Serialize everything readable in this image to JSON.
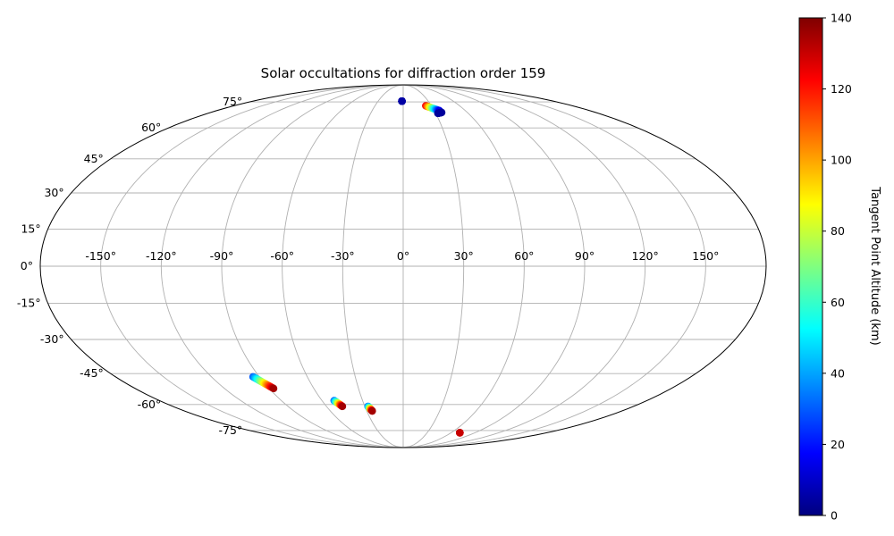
{
  "chart_data": {
    "type": "scatter",
    "projection": "mollweide",
    "title": "Solar occultations for diffraction order 159",
    "grid": true,
    "lon_ticks": [
      -150,
      -120,
      -90,
      -60,
      -30,
      0,
      30,
      60,
      90,
      120,
      150
    ],
    "lon_tick_labels": [
      "-150°",
      "-120°",
      "-90°",
      "-60°",
      "-30°",
      "0°",
      "30°",
      "60°",
      "90°",
      "120°",
      "150°"
    ],
    "lat_ticks": [
      -75,
      -60,
      -45,
      -30,
      -15,
      0,
      15,
      30,
      45,
      60,
      75
    ],
    "lat_tick_labels": [
      "-75°",
      "-60°",
      "-45°",
      "-30°",
      "-15°",
      "0°",
      "15°",
      "30°",
      "45°",
      "60°",
      "75°"
    ],
    "colorbar": {
      "label": "Tangent Point Altitude (km)",
      "colormap": "jet",
      "range": [
        0,
        140
      ],
      "ticks": [
        0,
        20,
        40,
        60,
        80,
        100,
        120,
        140
      ],
      "tick_labels": [
        "0",
        "20",
        "40",
        "60",
        "80",
        "100",
        "120",
        "140"
      ]
    },
    "tracks": [
      {
        "lon_start": -1.5,
        "lat_start": 75.5,
        "lon_end": -1.5,
        "lat_end": 75.5,
        "alt_start": 5,
        "alt_end": 5
      },
      {
        "lon_start": 24,
        "lat_start": 72.5,
        "lon_end": 35,
        "lat_end": 69.5,
        "alt_start": 125,
        "alt_end": 15
      },
      {
        "lon_start": 32,
        "lat_start": 68,
        "lon_end": 36,
        "lat_end": 68.5,
        "alt_start": 4,
        "alt_end": 4
      },
      {
        "lon_start": -94,
        "lat_start": -46.5,
        "lon_end": -87,
        "lat_end": -52,
        "alt_start": 30,
        "alt_end": 135
      },
      {
        "lon_start": -51,
        "lat_start": -58,
        "lon_end": -47.5,
        "lat_end": -61,
        "alt_start": 30,
        "alt_end": 135
      },
      {
        "lon_start": -27.5,
        "lat_start": -61,
        "lon_end": -25.5,
        "lat_end": -63.5,
        "alt_start": 30,
        "alt_end": 135
      },
      {
        "lon_start": 71,
        "lat_start": -76.5,
        "lon_end": 71,
        "lat_end": -76.5,
        "alt_start": 130,
        "alt_end": 130
      }
    ]
  }
}
